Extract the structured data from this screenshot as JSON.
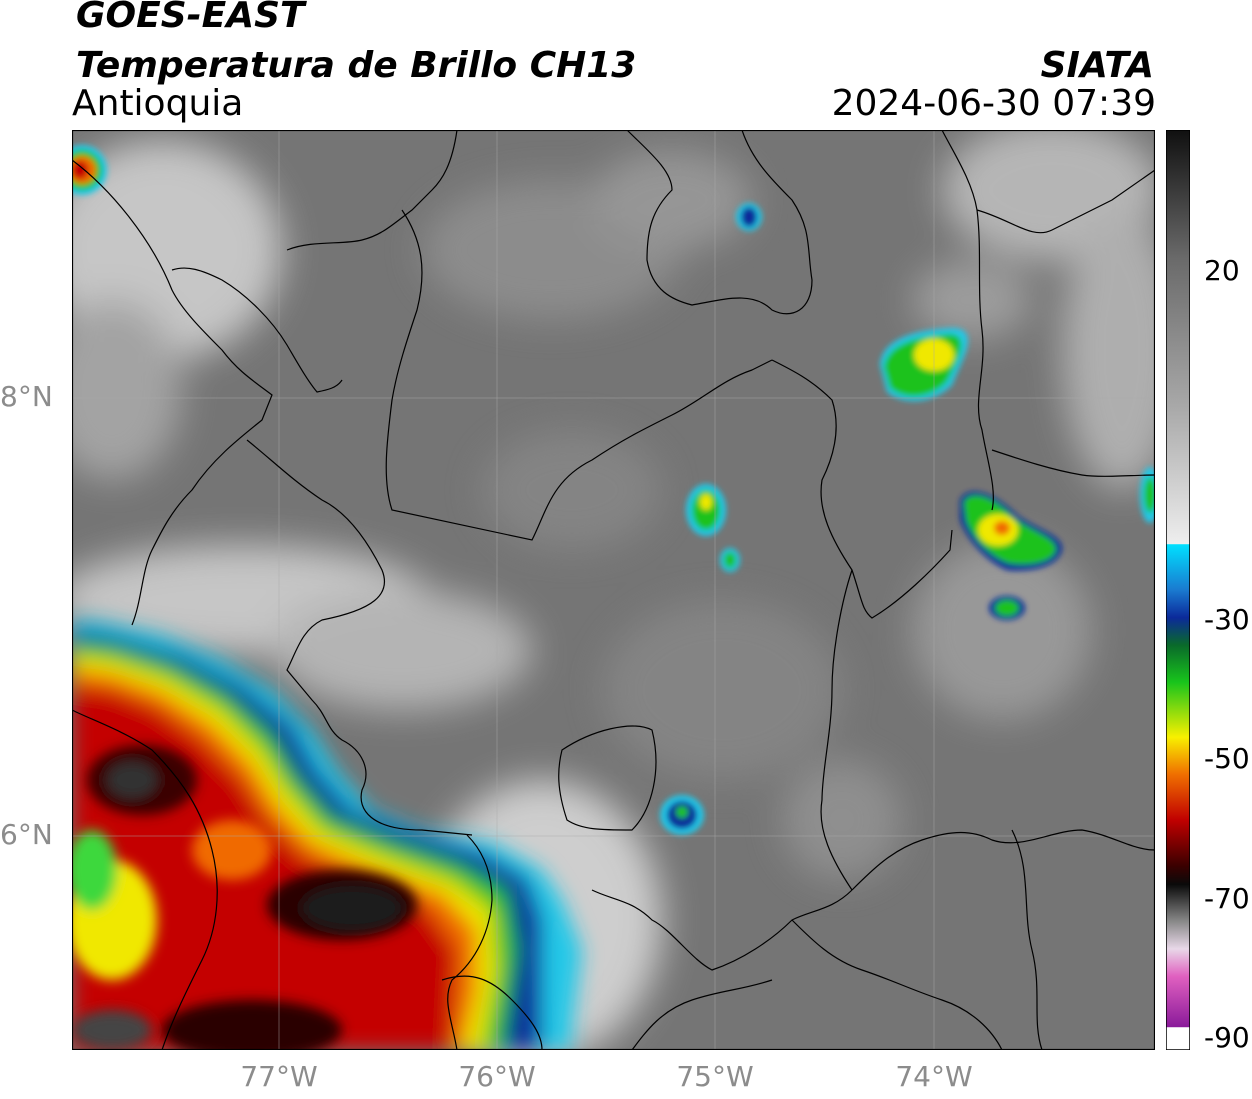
{
  "header": {
    "satellite": "GOES-EAST",
    "product": "Temperatura de Brillo CH13",
    "region": "Antioquia",
    "brand": "SIATA",
    "timestamp": "2024-06-30 07:39"
  },
  "axes": {
    "lat_labels": [
      {
        "text": "8°N",
        "value": 8.0
      },
      {
        "text": "6°N",
        "value": 6.0
      }
    ],
    "lon_labels": [
      {
        "text": "77°W",
        "value": -77.0
      },
      {
        "text": "76°W",
        "value": -76.0
      },
      {
        "text": "75°W",
        "value": -75.0
      },
      {
        "text": "74°W",
        "value": -74.0
      }
    ],
    "lon_range": [
      -77.95,
      -73.0
    ],
    "lat_range": [
      5.05,
      9.25
    ]
  },
  "colorbar": {
    "ticks": [
      {
        "text": "20",
        "value": 20
      },
      {
        "text": "-30",
        "value": -30
      },
      {
        "text": "-50",
        "value": -50
      },
      {
        "text": "-70",
        "value": -70
      },
      {
        "text": "-90",
        "value": -90
      }
    ],
    "range": [
      -90,
      40
    ],
    "colors": {
      "warm_top": "#101010",
      "gray_mid": "#7a7a7a",
      "white": "#f5f5f5",
      "cyan": "#00d4f0",
      "blue": "#0b2a9a",
      "green": "#18c41c",
      "yellow": "#f8f000",
      "orange": "#f07000",
      "red": "#c00000",
      "dark_red": "#3a0000",
      "black": "#0a0a0a",
      "pink": "#e060c0",
      "purple": "#8a1a9a"
    }
  }
}
